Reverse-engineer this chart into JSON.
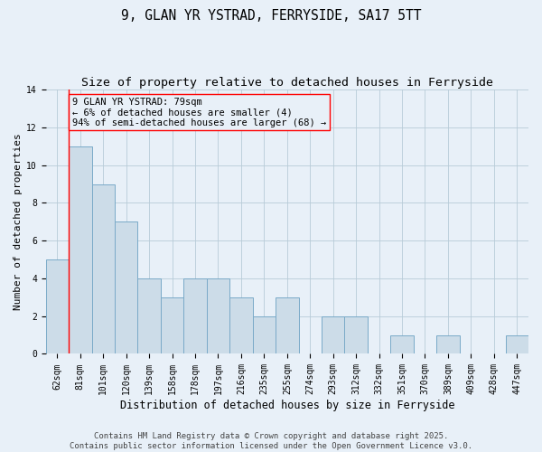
{
  "title": "9, GLAN YR YSTRAD, FERRYSIDE, SA17 5TT",
  "subtitle": "Size of property relative to detached houses in Ferryside",
  "xlabel": "Distribution of detached houses by size in Ferryside",
  "ylabel": "Number of detached properties",
  "categories": [
    "62sqm",
    "81sqm",
    "101sqm",
    "120sqm",
    "139sqm",
    "158sqm",
    "178sqm",
    "197sqm",
    "216sqm",
    "235sqm",
    "255sqm",
    "274sqm",
    "293sqm",
    "312sqm",
    "332sqm",
    "351sqm",
    "370sqm",
    "389sqm",
    "409sqm",
    "428sqm",
    "447sqm"
  ],
  "values": [
    5,
    11,
    9,
    7,
    4,
    3,
    4,
    4,
    3,
    2,
    3,
    0,
    2,
    2,
    0,
    1,
    0,
    1,
    0,
    0,
    1
  ],
  "bar_color": "#ccdce8",
  "bar_edge_color": "#7aaac8",
  "grid_color": "#b8ccd8",
  "bg_color": "#e8f0f8",
  "red_line_index": 1,
  "annotation_text": "9 GLAN YR YSTRAD: 79sqm\n← 6% of detached houses are smaller (4)\n94% of semi-detached houses are larger (68) →",
  "ylim": [
    0,
    14
  ],
  "yticks": [
    0,
    2,
    4,
    6,
    8,
    10,
    12,
    14
  ],
  "footnote": "Contains HM Land Registry data © Crown copyright and database right 2025.\nContains public sector information licensed under the Open Government Licence v3.0.",
  "title_fontsize": 10.5,
  "subtitle_fontsize": 9.5,
  "xlabel_fontsize": 8.5,
  "ylabel_fontsize": 8,
  "tick_fontsize": 7,
  "footnote_fontsize": 6.5,
  "annotation_fontsize": 7.5
}
